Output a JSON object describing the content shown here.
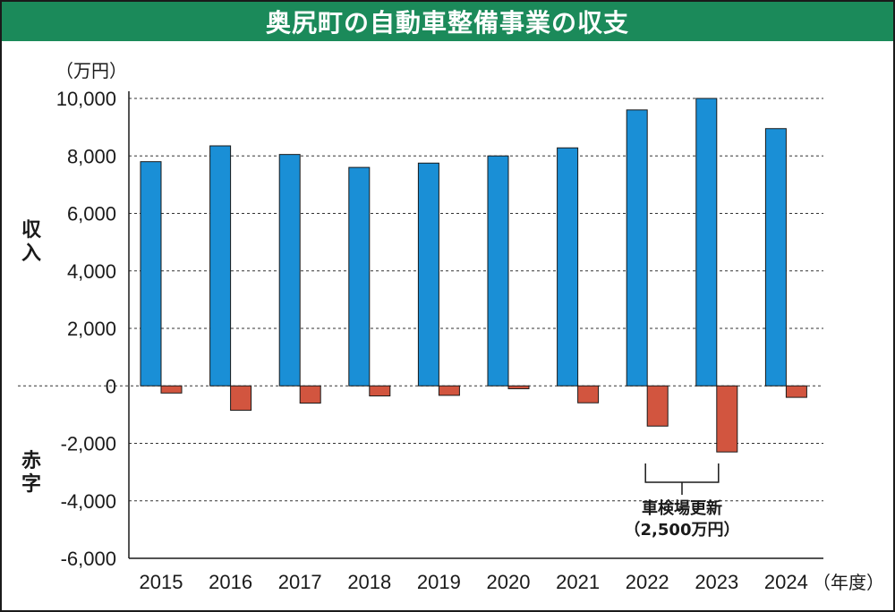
{
  "chart_data": {
    "type": "bar",
    "title": "奥尻町の自動車整備事業の収支",
    "unit_label": "（万円）",
    "x_unit_label": "（年度）",
    "ylabel_top": "収入",
    "ylabel_bottom": "赤字",
    "categories": [
      "2015",
      "2016",
      "2017",
      "2018",
      "2019",
      "2020",
      "2021",
      "2022",
      "2023",
      "2024"
    ],
    "series": [
      {
        "name": "収入",
        "color": "#1a8fd6",
        "values": [
          7800,
          8350,
          8050,
          7600,
          7750,
          8000,
          8280,
          9600,
          10000,
          8950
        ]
      },
      {
        "name": "赤字",
        "color": "#d2553f",
        "values": [
          -250,
          -850,
          -600,
          -350,
          -330,
          -100,
          -590,
          -1400,
          -2300,
          -400
        ]
      }
    ],
    "ylim": [
      -6000,
      10000
    ],
    "yticks": [
      10000,
      8000,
      6000,
      4000,
      2000,
      0,
      -2000,
      -4000,
      -6000
    ],
    "ytick_labels": [
      "10,000",
      "8,000",
      "6,000",
      "4,000",
      "2,000",
      "0",
      "-2,000",
      "-4,000",
      "-6,000"
    ],
    "grid": true,
    "annotation": {
      "lines": [
        "車検場更新",
        "（2,500万円）"
      ],
      "spans": [
        "2022",
        "2023"
      ]
    }
  }
}
